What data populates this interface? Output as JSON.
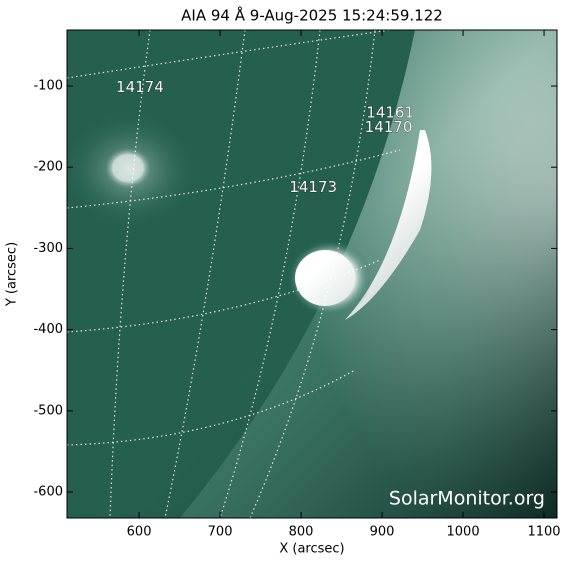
{
  "chart_data": {
    "type": "image",
    "title": "AIA 94 Å  9-Aug-2025 15:24:59.122",
    "xlabel": "X (arcsec)",
    "ylabel": "Y (arcsec)",
    "xlim": [
      511,
      1116
    ],
    "ylim": [
      -632,
      -31
    ],
    "xticks": [
      600,
      700,
      800,
      900,
      1000,
      1100
    ],
    "yticks": [
      -100,
      -200,
      -300,
      -400,
      -500,
      -600
    ],
    "annotations": [
      {
        "text": "14174",
        "x": 601,
        "y": -102
      },
      {
        "text": "14161",
        "x": 910,
        "y": -133
      },
      {
        "text": "14170",
        "x": 908,
        "y": -151
      },
      {
        "text": "14173",
        "x": 815,
        "y": -225
      }
    ],
    "watermark": "SolarMonitor.org"
  }
}
